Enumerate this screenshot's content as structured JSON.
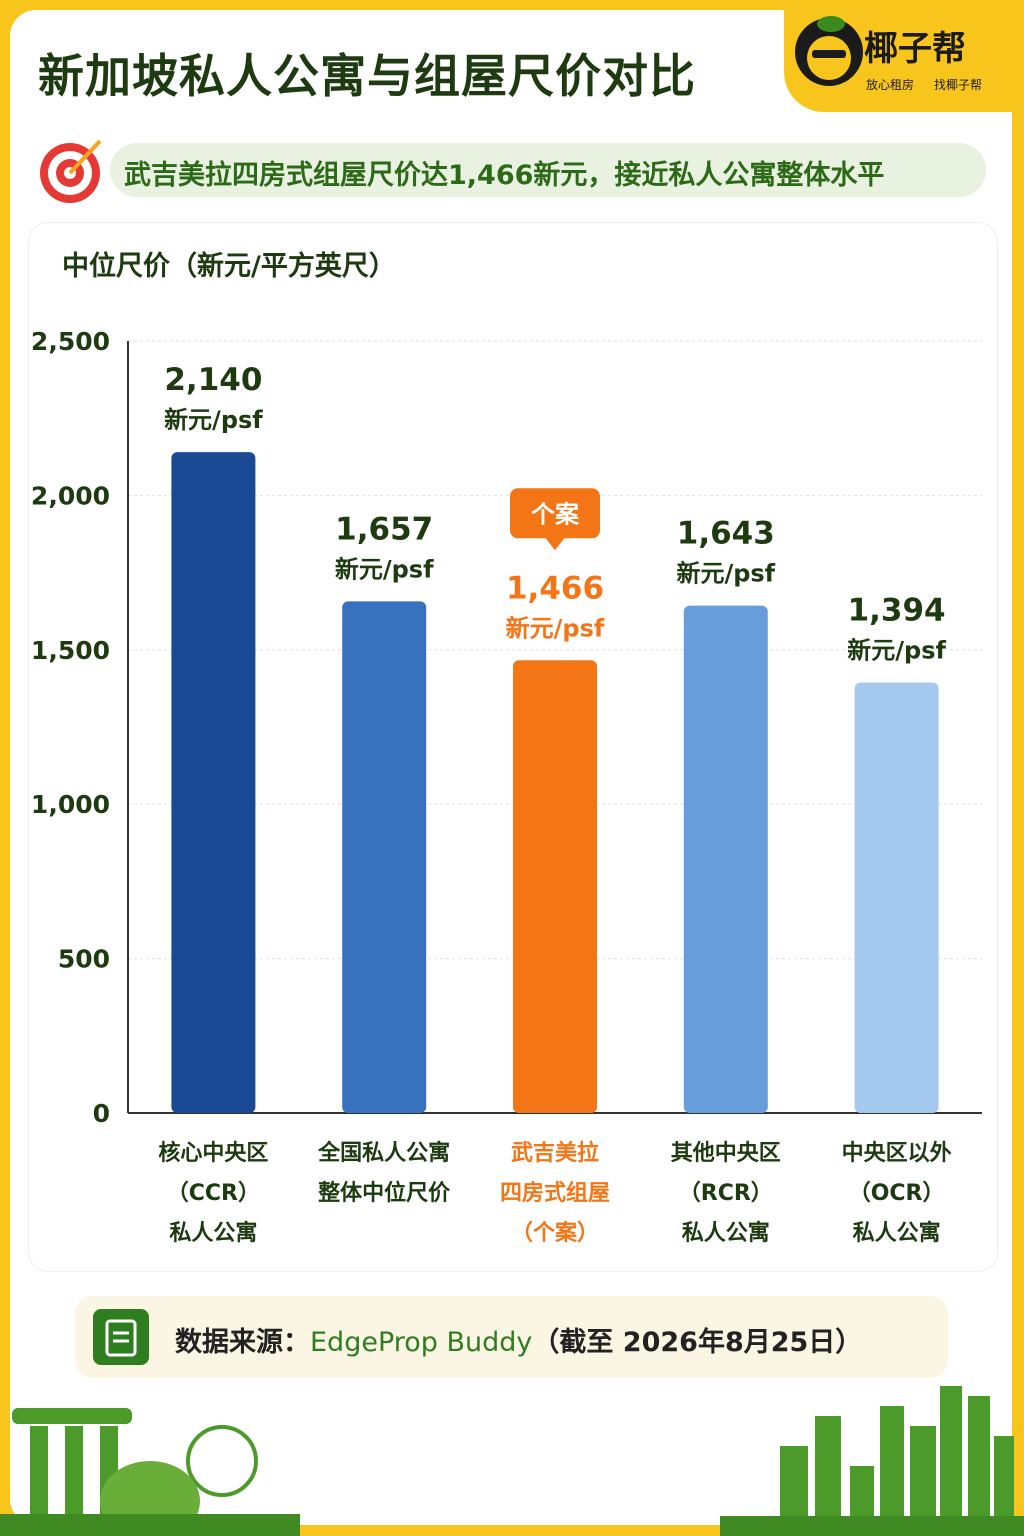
{
  "header": {
    "title": "新加坡私人公寓与组屋尺价对比",
    "brand": "椰子帮",
    "slogan_1": "放心租房",
    "slogan_2": "找椰子帮",
    "headline": "武吉美拉四房式组屋尺价达1,466新元，接近私人公寓整体水平"
  },
  "chart_data": {
    "type": "bar",
    "y_label": "中位尺价（新元/平方英尺）",
    "categories": [
      "核心中央区\n（CCR）\n私人公寓",
      "全国私人公寓\n整体中位尺价",
      "武吉美拉\n四房式组屋\n（个案）",
      "其他中央区\n（RCR）\n私人公寓",
      "中央区以外\n（OCR）\n私人公寓"
    ],
    "values": [
      2140,
      1657,
      1466,
      1643,
      1394
    ],
    "value_labels": [
      "2,140",
      "1,657",
      "1,466",
      "1,643",
      "1,394"
    ],
    "value_unit": "新元/psf",
    "colors": [
      "#1b4a95",
      "#3871bd",
      "#f47515",
      "#679dda",
      "#a5c8ee"
    ],
    "highlight_index": 2,
    "highlight_label": "个案",
    "highlight_color": "#f47515",
    "ylim": [
      0,
      2500
    ],
    "yticks": [
      0,
      500,
      {
        "value": 1000,
        "label": "1,000"
      },
      {
        "value": 1500,
        "label": "1,500"
      },
      {
        "value": 2000,
        "label": "2,000"
      },
      {
        "value": 2500,
        "label": "2,500"
      }
    ],
    "grid": true
  },
  "source": {
    "label": "数据来源：",
    "name": "EdgeProp Buddy",
    "date": "（截至 2026年8月25日）"
  }
}
